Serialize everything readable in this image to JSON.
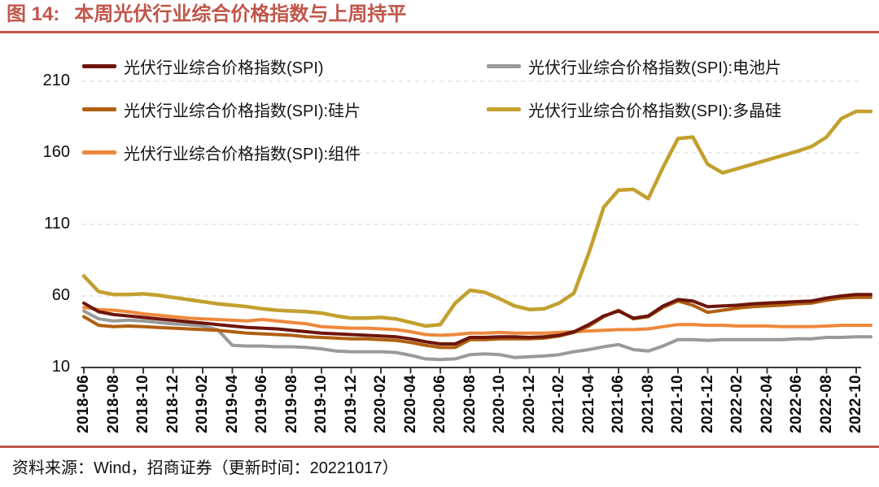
{
  "figure": {
    "label": "图 14:",
    "title": "本周光伏行业综合价格指数与上周持平",
    "accent_color": "#C0564A"
  },
  "footer": {
    "text": "资料来源：Wind，招商证券（更新时间：20221017）"
  },
  "chart_data": {
    "type": "line",
    "title": "本周光伏行业综合价格指数与上周持平",
    "x_start": "2018-06",
    "x_end": "2022-10",
    "x_step_months": 1,
    "x_tick_labels": [
      "2018-06",
      "2018-08",
      "2018-10",
      "2018-12",
      "2019-02",
      "2019-04",
      "2019-06",
      "2019-08",
      "2019-10",
      "2019-12",
      "2020-02",
      "2020-04",
      "2020-06",
      "2020-08",
      "2020-10",
      "2020-12",
      "2021-02",
      "2021-04",
      "2021-06",
      "2021-08",
      "2021-10",
      "2021-12",
      "2022-02",
      "2022-04",
      "2022-06",
      "2022-08",
      "2022-10"
    ],
    "y_ticks": [
      10,
      60,
      110,
      160,
      210
    ],
    "ylim": [
      10,
      215
    ],
    "grid": "horizontal-dashed",
    "legend_position": "top-two-columns",
    "axis_color": "#3C3C3C",
    "grid_color": "#E4E4E4",
    "series": [
      {
        "name": "光伏行业综合价格指数(SPI)",
        "color": "#6D150C",
        "values": [
          55,
          49,
          47,
          46,
          45,
          44,
          43,
          42,
          41,
          40,
          39,
          38,
          37.5,
          37,
          36,
          35,
          34,
          33.5,
          33,
          32.5,
          32,
          31.5,
          30,
          28,
          26.5,
          26.5,
          31,
          31,
          31.5,
          31.5,
          31,
          31.5,
          32.5,
          35,
          40,
          46,
          49.5,
          44.5,
          46,
          53,
          57.5,
          56.5,
          52.5,
          53,
          53.5,
          54.5,
          55,
          55.5,
          56,
          56.5,
          58.5,
          60,
          61
        ]
      },
      {
        "name": "光伏行业综合价格指数(SPI):硅片",
        "color": "#B05F10",
        "values": [
          45.5,
          39.5,
          38.5,
          39,
          38.5,
          38,
          37.5,
          37,
          36.5,
          36,
          35,
          34,
          33.5,
          33,
          32.5,
          31.5,
          31,
          30.5,
          30,
          30,
          29.5,
          29,
          27.5,
          25.5,
          24,
          24,
          29.5,
          29.5,
          30,
          30,
          30,
          30.5,
          32,
          34.5,
          39,
          45.5,
          50,
          44,
          45.5,
          52,
          56.5,
          53.5,
          48.5,
          50,
          51.5,
          52.5,
          53,
          53.5,
          54.5,
          55,
          57,
          58.5,
          59
        ]
      },
      {
        "name": "光伏行业综合价格指数(SPI):组件",
        "color": "#EE883B",
        "values": [
          52,
          50.5,
          50,
          49,
          47.5,
          46.5,
          45.5,
          44.5,
          44,
          43.5,
          43,
          42.5,
          43.5,
          42.5,
          41.5,
          40.5,
          38.5,
          38,
          37.5,
          37.5,
          37,
          36.5,
          35,
          33,
          32.5,
          33,
          34,
          34,
          34.5,
          34,
          34,
          34,
          34.5,
          35,
          35.5,
          36,
          36.5,
          36.5,
          37,
          38.5,
          40,
          40,
          39.5,
          39.5,
          39,
          39,
          39,
          38.5,
          38.5,
          38.5,
          39,
          39.5,
          39.5
        ]
      },
      {
        "name": "光伏行业综合价格指数(SPI):电池片",
        "color": "#9A9A9A",
        "values": [
          49.5,
          44,
          42.5,
          43,
          42.5,
          41.5,
          40.5,
          40,
          39,
          36.5,
          25.5,
          25,
          25,
          24.5,
          24.5,
          24,
          23,
          21.5,
          21,
          21,
          21,
          20.5,
          18.5,
          16,
          15.5,
          16,
          19,
          19.5,
          19,
          17,
          17.5,
          18,
          19,
          21,
          22.5,
          24.5,
          26,
          22.5,
          21.5,
          25,
          29.5,
          29.5,
          29,
          29.5,
          29.5,
          29.5,
          29.5,
          29.5,
          30,
          30,
          31,
          31,
          31.5
        ]
      },
      {
        "name": "光伏行业综合价格指数(SPI):多晶硅",
        "color": "#C3A02F",
        "values": [
          74,
          63,
          61,
          61,
          61.5,
          60.5,
          59,
          57.5,
          56,
          54.5,
          53.5,
          52.5,
          51,
          50,
          49.5,
          49,
          48,
          46,
          44.5,
          44.5,
          45,
          44,
          41.5,
          39,
          40,
          55,
          64,
          62.5,
          58,
          53,
          50.5,
          51,
          55,
          62,
          90,
          122,
          134,
          134.5,
          128,
          150,
          170,
          171,
          152,
          146,
          149,
          152,
          155,
          158,
          161,
          164.5,
          171,
          184,
          189
        ]
      }
    ],
    "legend_order": [
      0,
      3,
      1,
      4,
      2
    ],
    "draw_order": [
      3,
      2,
      1,
      0,
      4
    ]
  }
}
